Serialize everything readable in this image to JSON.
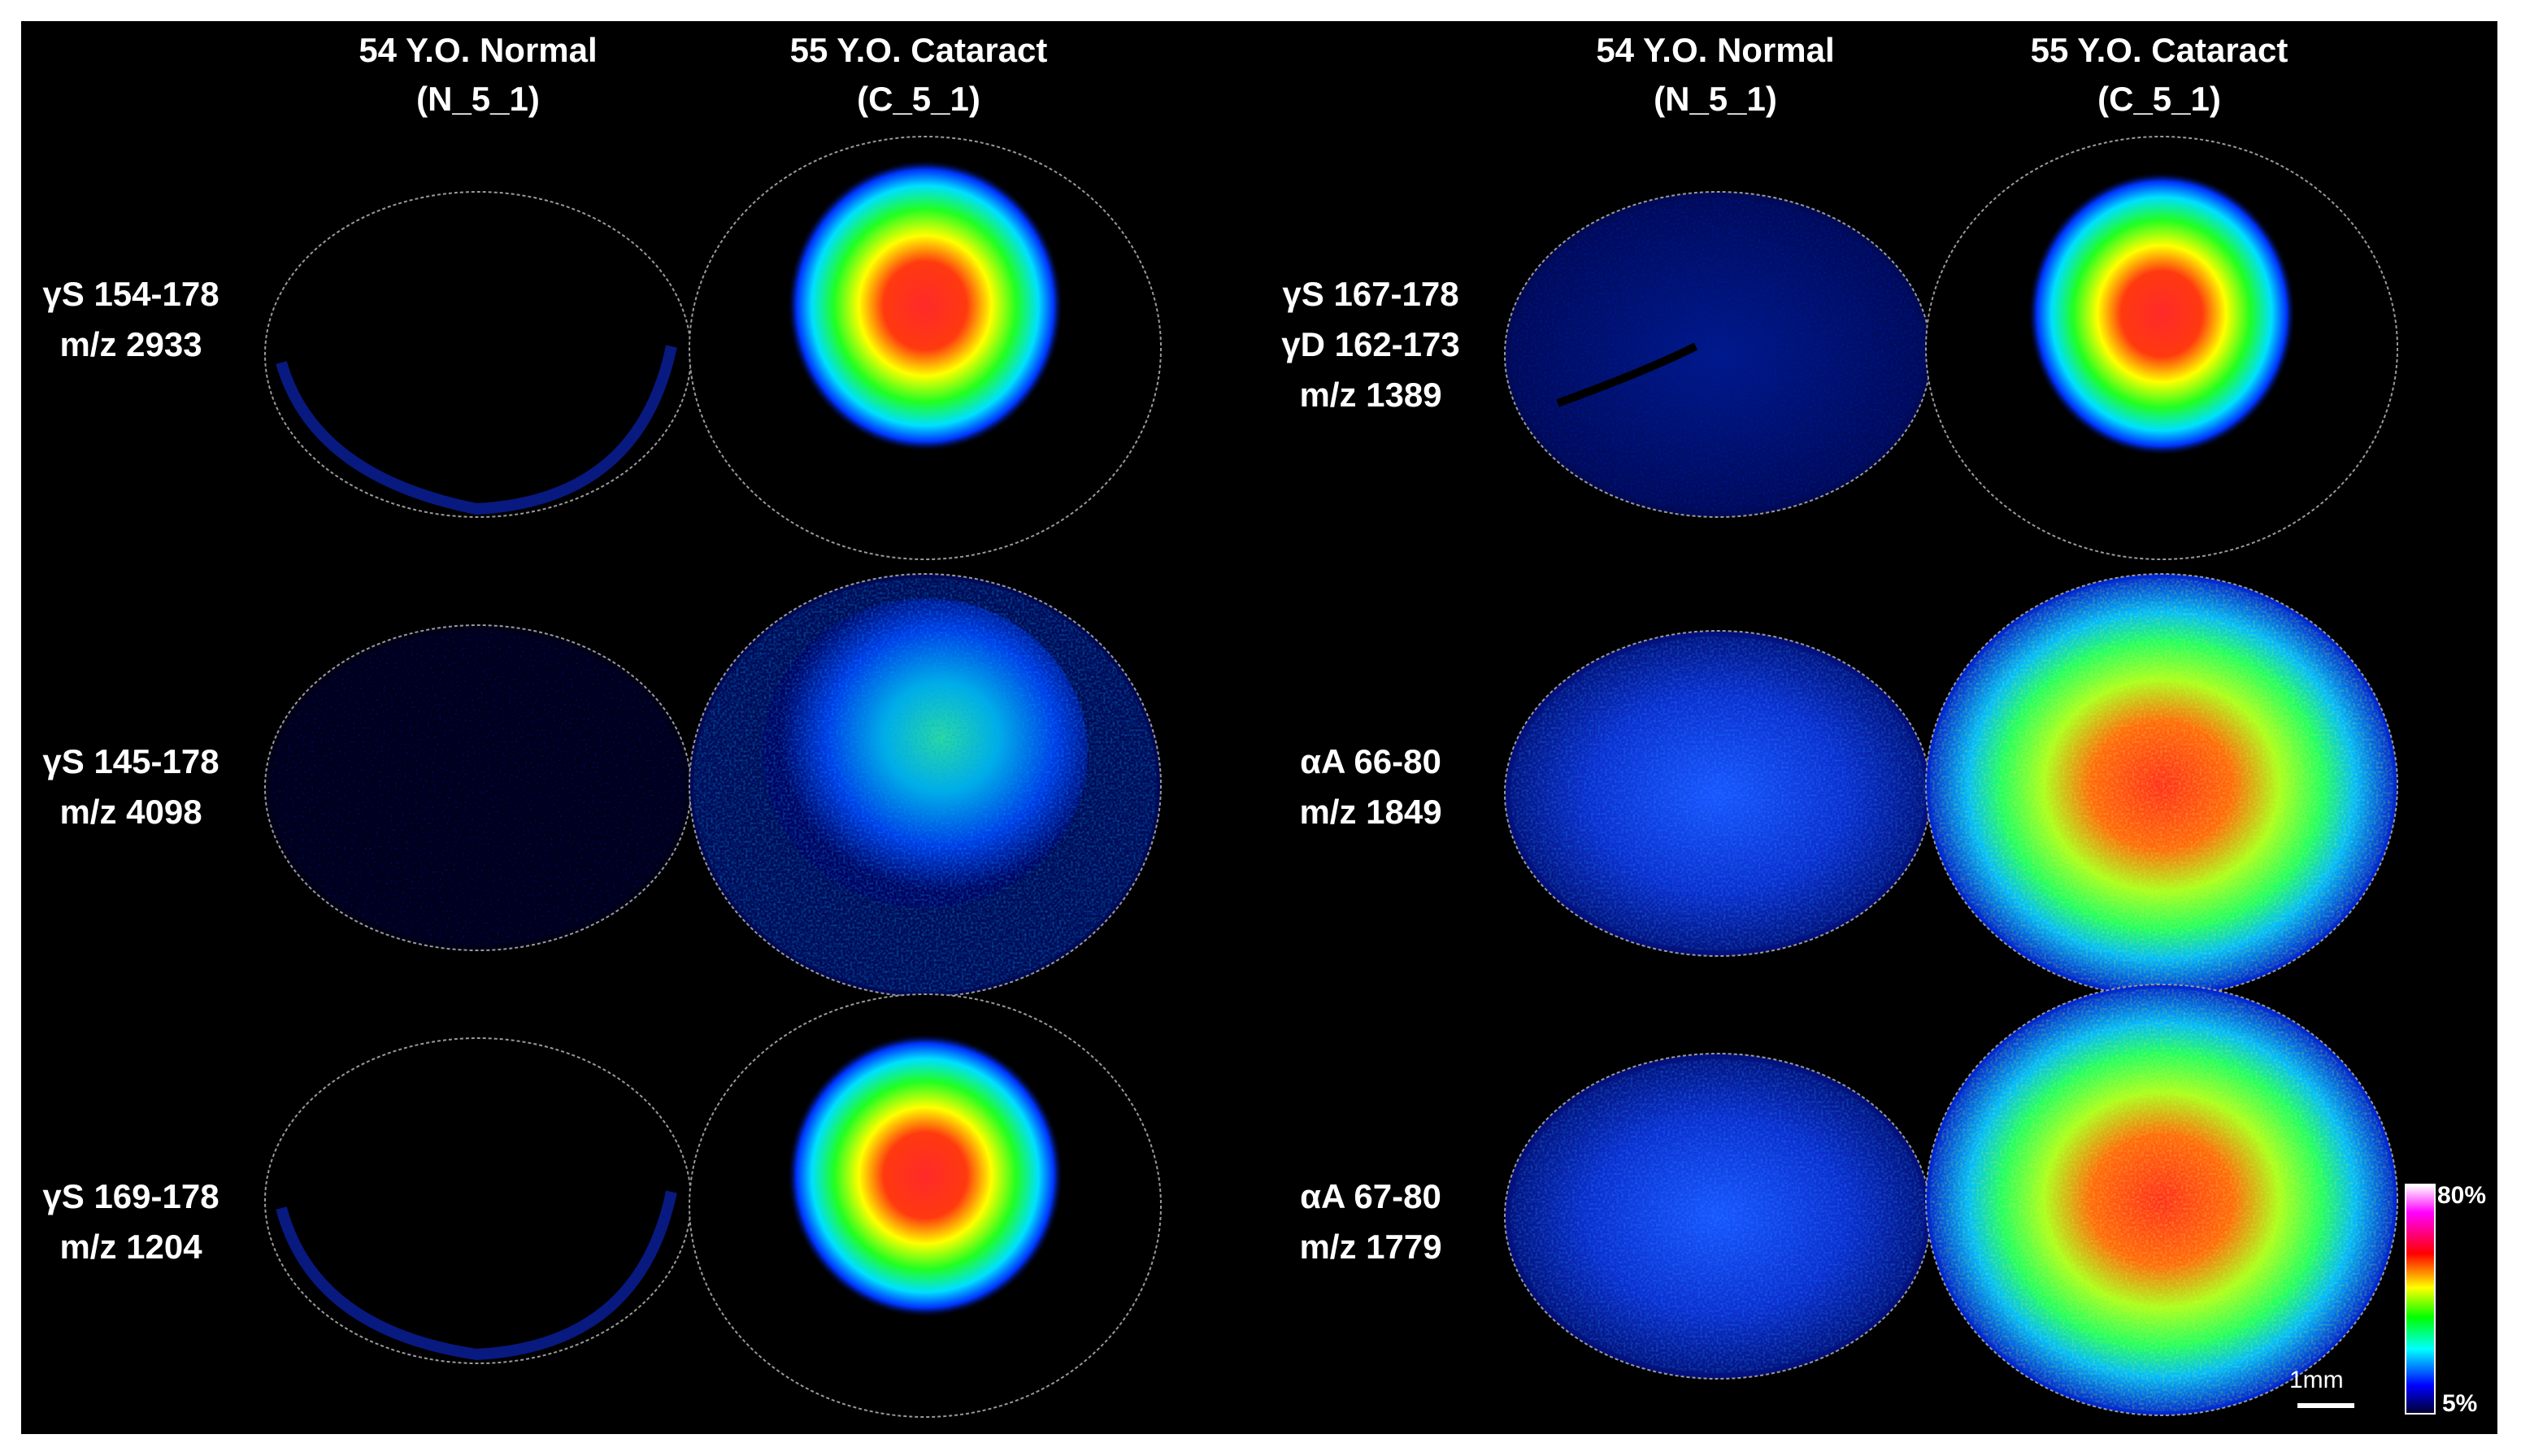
{
  "headers": [
    {
      "line1": "54 Y.O. Normal",
      "line2": "(N_5_1)"
    },
    {
      "line1": "55 Y.O. Cataract",
      "line2": "(C_5_1)"
    },
    {
      "line1": "54 Y.O. Normal",
      "line2": "(N_5_1)"
    },
    {
      "line1": "55 Y.O. Cataract",
      "line2": "(C_5_1)"
    }
  ],
  "left_rows": [
    {
      "line1": "γS 154-178",
      "line2": "m/z 2933"
    },
    {
      "line1": "γS 145-178",
      "line2": "m/z 4098"
    },
    {
      "line1": "γS 169-178",
      "line2": "m/z 1204"
    }
  ],
  "right_rows": [
    {
      "line1": "γS 167-178",
      "line2": "γD 162-173",
      "line3": "m/z 1389"
    },
    {
      "line1": "αA 66-80",
      "line2": "m/z 1849"
    },
    {
      "line1": "αA 67-80",
      "line2": "m/z 1779"
    }
  ],
  "colorbar": {
    "max_label": "80%",
    "min_label": "5%"
  },
  "scale_bar": {
    "label": "1mm"
  },
  "colors": {
    "background": "#000000",
    "text": "#ffffff"
  }
}
